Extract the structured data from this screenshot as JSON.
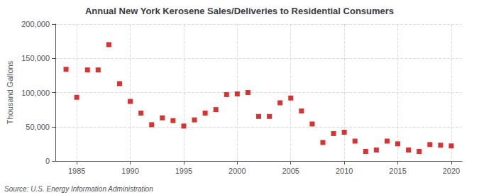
{
  "chart_data": {
    "type": "scatter",
    "title": "Annual New York Kerosene Sales/Deliveries to Residential Consumers",
    "ylabel": "Thousand Gallons",
    "annotations": [
      "Source: U.S. Energy Information Administration"
    ],
    "x": [
      1984,
      1985,
      1986,
      1987,
      1988,
      1989,
      1990,
      1991,
      1992,
      1993,
      1994,
      1995,
      1996,
      1997,
      1998,
      1999,
      2000,
      2001,
      2002,
      2003,
      2004,
      2005,
      2006,
      2007,
      2008,
      2009,
      2010,
      2011,
      2012,
      2013,
      2014,
      2015,
      2016,
      2017,
      2018,
      2019,
      2020
    ],
    "values": [
      134000,
      93000,
      133000,
      133000,
      170000,
      113000,
      87000,
      70000,
      53000,
      63000,
      59000,
      51000,
      60000,
      70000,
      75000,
      97000,
      98000,
      100000,
      65000,
      65000,
      85000,
      92000,
      73000,
      54000,
      27000,
      40000,
      42000,
      29000,
      14000,
      16000,
      29000,
      25000,
      16000,
      14000,
      24000,
      23000,
      22000
    ],
    "color": "#cc0000",
    "marker": "square",
    "xlim": [
      1983,
      2021
    ],
    "xticks": [
      1985,
      1990,
      1995,
      2000,
      2005,
      2010,
      2015,
      2020
    ],
    "ylim": [
      0,
      200000
    ],
    "yticks": [
      0,
      {
        "value": 50000,
        "label": "50,000"
      },
      {
        "value": 100000,
        "label": "100,000"
      },
      {
        "value": 150000,
        "label": "150,000"
      },
      {
        "value": 200000,
        "label": "200,000"
      }
    ],
    "grid": true
  }
}
